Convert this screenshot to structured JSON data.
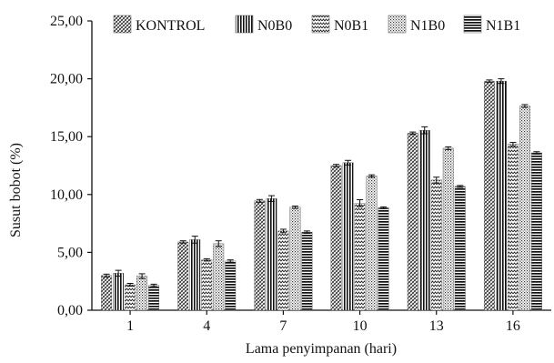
{
  "chart_data": {
    "type": "bar",
    "title": "",
    "xlabel": "Lama penyimpanan (hari)",
    "ylabel": "Susut bobot (%)",
    "ylim": [
      0,
      25
    ],
    "yticks": [
      "0,00",
      "5,00",
      "10,00",
      "15,00",
      "20,00",
      "25,00"
    ],
    "categories": [
      "1",
      "4",
      "7",
      "10",
      "13",
      "16"
    ],
    "legend_position": "top",
    "grid": false,
    "error_bars": true,
    "series": [
      {
        "name": "KONTROL",
        "values": [
          3.0,
          5.9,
          9.45,
          12.5,
          15.3,
          19.8
        ],
        "errors": [
          0.12,
          0.1,
          0.12,
          0.1,
          0.1,
          0.1
        ],
        "pattern": "diagonal-cross"
      },
      {
        "name": "N0B0",
        "values": [
          3.2,
          6.1,
          9.65,
          12.75,
          15.55,
          19.8
        ],
        "errors": [
          0.25,
          0.3,
          0.25,
          0.2,
          0.3,
          0.2
        ],
        "pattern": "vertical"
      },
      {
        "name": "N0B1",
        "values": [
          2.2,
          4.35,
          6.85,
          9.25,
          11.25,
          14.35
        ],
        "errors": [
          0.12,
          0.1,
          0.15,
          0.3,
          0.25,
          0.15
        ],
        "pattern": "wave"
      },
      {
        "name": "N1B0",
        "values": [
          2.95,
          5.75,
          8.9,
          11.6,
          14.0,
          17.65
        ],
        "errors": [
          0.2,
          0.25,
          0.1,
          0.1,
          0.12,
          0.12
        ],
        "pattern": "dots"
      },
      {
        "name": "N1B1",
        "values": [
          2.15,
          4.25,
          6.75,
          8.85,
          10.7,
          13.6
        ],
        "errors": [
          0.1,
          0.1,
          0.1,
          0.08,
          0.08,
          0.1
        ],
        "pattern": "horizontal"
      }
    ]
  }
}
